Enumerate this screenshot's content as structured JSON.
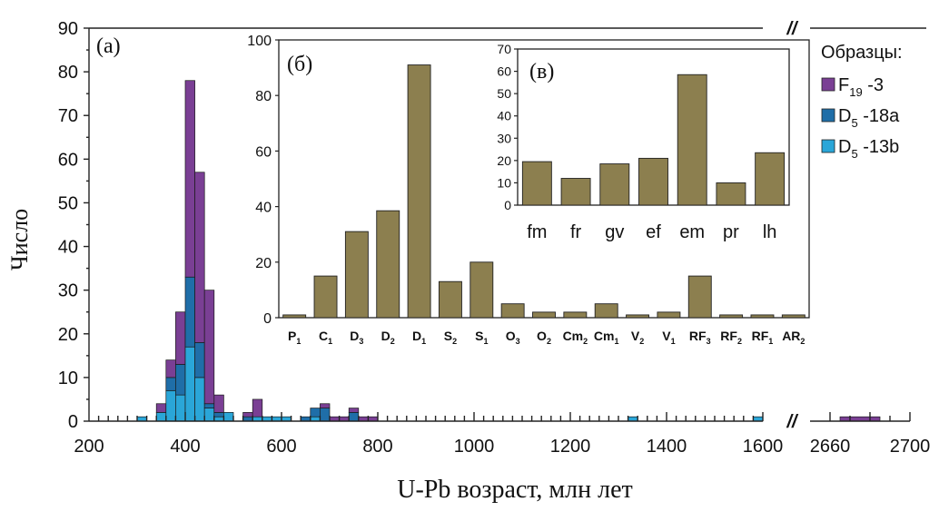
{
  "colors": {
    "F19_3": "#7a3f94",
    "D5_18a": "#1f6ea8",
    "D5_13b": "#2aa6d8",
    "olive": "#8c7f4f",
    "axis": "#222222"
  },
  "chart_data": [
    {
      "id": "a",
      "type": "bar",
      "stacked": true,
      "panel_label": "(а)",
      "xlabel": "U-Pb возраст, млн лет",
      "ylabel": "Число",
      "xlim": [
        200,
        1600
      ],
      "xlim_broken": [
        2650,
        2700
      ],
      "ylim": [
        0,
        90
      ],
      "x_ticks": [
        200,
        400,
        600,
        800,
        1000,
        1200,
        1400,
        1600
      ],
      "x_ticks_broken": [
        2660,
        2700
      ],
      "y_ticks": [
        0,
        10,
        20,
        30,
        40,
        50,
        60,
        70,
        80,
        90
      ],
      "bin_width": 20,
      "break_mark": "//",
      "legend": {
        "title": "Образцы:",
        "position": "top-right",
        "entries": [
          {
            "key": "F19_3",
            "base": "F",
            "sub": "19",
            "rest": "-3"
          },
          {
            "key": "D5_18a",
            "base": "D",
            "sub": "5",
            "rest": "-18a"
          },
          {
            "key": "D5_13b",
            "base": "D",
            "sub": "5",
            "rest": "-13b"
          }
        ]
      },
      "bins": [
        {
          "start": 300,
          "D5_13b": 1,
          "D5_18a": 0,
          "F19_3": 0
        },
        {
          "start": 340,
          "D5_13b": 2,
          "D5_18a": 0,
          "F19_3": 2
        },
        {
          "start": 360,
          "D5_13b": 7,
          "D5_18a": 3,
          "F19_3": 4
        },
        {
          "start": 380,
          "D5_13b": 6,
          "D5_18a": 7,
          "F19_3": 12
        },
        {
          "start": 400,
          "D5_13b": 17,
          "D5_18a": 16,
          "F19_3": 45
        },
        {
          "start": 420,
          "D5_13b": 10,
          "D5_18a": 8,
          "F19_3": 39
        },
        {
          "start": 440,
          "D5_13b": 3,
          "D5_18a": 1,
          "F19_3": 26
        },
        {
          "start": 460,
          "D5_13b": 1,
          "D5_18a": 1,
          "F19_3": 4
        },
        {
          "start": 480,
          "D5_13b": 2,
          "D5_18a": 0,
          "F19_3": 0
        },
        {
          "start": 520,
          "D5_13b": 0,
          "D5_18a": 1,
          "F19_3": 1
        },
        {
          "start": 540,
          "D5_13b": 1,
          "D5_18a": 0,
          "F19_3": 4
        },
        {
          "start": 560,
          "D5_13b": 1,
          "D5_18a": 0,
          "F19_3": 0
        },
        {
          "start": 580,
          "D5_13b": 1,
          "D5_18a": 0,
          "F19_3": 0
        },
        {
          "start": 600,
          "D5_13b": 1,
          "D5_18a": 0,
          "F19_3": 0
        },
        {
          "start": 640,
          "D5_13b": 0,
          "D5_18a": 1,
          "F19_3": 0
        },
        {
          "start": 660,
          "D5_13b": 1,
          "D5_18a": 2,
          "F19_3": 0
        },
        {
          "start": 680,
          "D5_13b": 0,
          "D5_18a": 3,
          "F19_3": 1
        },
        {
          "start": 700,
          "D5_13b": 0,
          "D5_18a": 0,
          "F19_3": 1
        },
        {
          "start": 720,
          "D5_13b": 0,
          "D5_18a": 0,
          "F19_3": 1
        },
        {
          "start": 740,
          "D5_13b": 0,
          "D5_18a": 2,
          "F19_3": 1
        },
        {
          "start": 760,
          "D5_13b": 0,
          "D5_18a": 0,
          "F19_3": 1
        },
        {
          "start": 780,
          "D5_13b": 0,
          "D5_18a": 0,
          "F19_3": 1
        },
        {
          "start": 1320,
          "D5_13b": 1,
          "D5_18a": 0,
          "F19_3": 0
        },
        {
          "start": 1580,
          "D5_13b": 1,
          "D5_18a": 0,
          "F19_3": 0
        },
        {
          "start": 2665,
          "D5_13b": 0,
          "D5_18a": 0,
          "F19_3": 1
        }
      ]
    },
    {
      "id": "b",
      "type": "bar",
      "panel_label": "(б)",
      "ylim": [
        0,
        100
      ],
      "y_ticks": [
        0,
        20,
        40,
        60,
        80,
        100
      ],
      "categories": [
        {
          "base": "P",
          "sub": "1"
        },
        {
          "base": "C",
          "sub": "1"
        },
        {
          "base": "D",
          "sub": "3"
        },
        {
          "base": "D",
          "sub": "2"
        },
        {
          "base": "D",
          "sub": "1"
        },
        {
          "base": "S",
          "sub": "2"
        },
        {
          "base": "S",
          "sub": "1"
        },
        {
          "base": "O",
          "sub": "3"
        },
        {
          "base": "O",
          "sub": "2"
        },
        {
          "base": "Cm",
          "sub": "2"
        },
        {
          "base": "Cm",
          "sub": "1"
        },
        {
          "base": "V",
          "sub": "2"
        },
        {
          "base": "V",
          "sub": "1"
        },
        {
          "base": "RF",
          "sub": "3"
        },
        {
          "base": "RF",
          "sub": "2"
        },
        {
          "base": "RF",
          "sub": "1"
        },
        {
          "base": "AR",
          "sub": "2"
        }
      ],
      "values": [
        1,
        15,
        31,
        38.5,
        91,
        13,
        20,
        5,
        2,
        2,
        5,
        1,
        2,
        15,
        1,
        1,
        1
      ]
    },
    {
      "id": "c",
      "type": "bar",
      "panel_label": "(в)",
      "ylim": [
        0,
        70
      ],
      "y_ticks": [
        0,
        10,
        20,
        30,
        40,
        50,
        60,
        70
      ],
      "categories": [
        "fm",
        "fr",
        "gv",
        "ef",
        "em",
        "pr",
        "lh"
      ],
      "values": [
        19.5,
        12,
        18.5,
        21,
        58.5,
        10,
        23.5
      ]
    }
  ]
}
